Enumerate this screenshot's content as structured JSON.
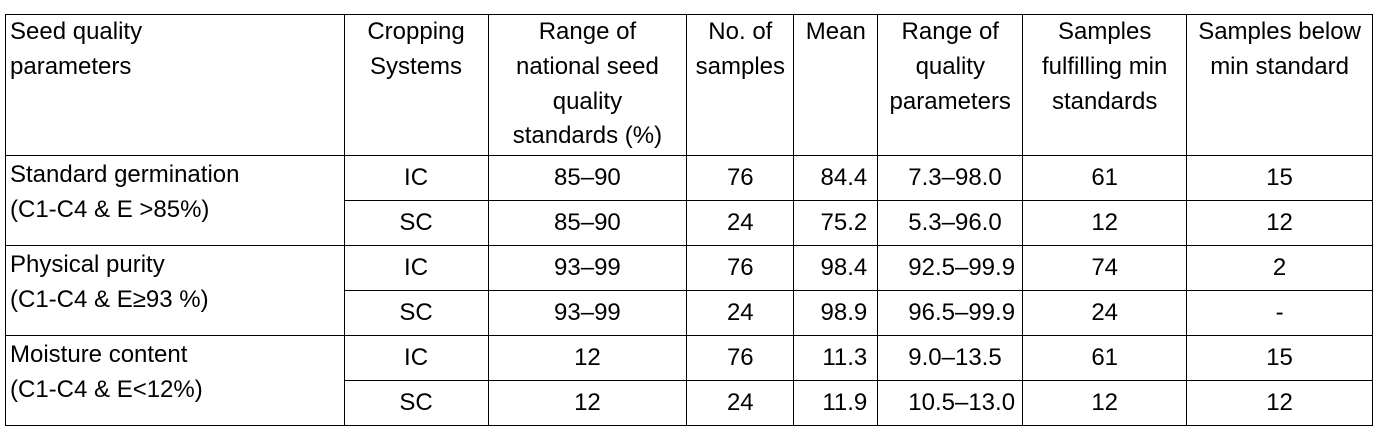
{
  "table": {
    "headers": [
      [
        "Seed quality",
        "parameters"
      ],
      [
        "Cropping",
        "Systems"
      ],
      [
        "Range of",
        "national seed",
        "quality",
        "standards (%)"
      ],
      [
        "No. of",
        "samples"
      ],
      [
        "Mean"
      ],
      [
        "Range of",
        "quality",
        "parameters"
      ],
      [
        "Samples",
        "fulfilling min",
        "standards"
      ],
      [
        "Samples below",
        "min standard"
      ]
    ],
    "groups": [
      {
        "param": [
          "Standard germination",
          "(C1-C4 & E >85%)"
        ],
        "rows": [
          {
            "system": "IC",
            "range": "85–90",
            "samples": "76",
            "mean": "84.4",
            "qrange": "7.3–98.0",
            "fulfilling": "61",
            "below": "15"
          },
          {
            "system": "SC",
            "range": "85–90",
            "samples": "24",
            "mean": "75.2",
            "qrange": "5.3–96.0",
            "fulfilling": "12",
            "below": "12"
          }
        ]
      },
      {
        "param": [
          "Physical purity",
          "(C1-C4 & E≥93 %)"
        ],
        "rows": [
          {
            "system": "IC",
            "range": "93–99",
            "samples": "76",
            "mean": "98.4",
            "qrange": "92.5–99.9",
            "fulfilling": "74",
            "below": "2"
          },
          {
            "system": "SC",
            "range": "93–99",
            "samples": "24",
            "mean": "98.9",
            "qrange": "96.5–99.9",
            "fulfilling": "24",
            "below": "-"
          }
        ]
      },
      {
        "param": [
          "Moisture content",
          "(C1-C4 & E<12%)"
        ],
        "rows": [
          {
            "system": "IC",
            "range": "12",
            "samples": "76",
            "mean": "11.3",
            "qrange": "9.0–13.5",
            "fulfilling": "61",
            "below": "15"
          },
          {
            "system": "SC",
            "range": "12",
            "samples": "24",
            "mean": "11.9",
            "qrange": "10.5–13.0",
            "fulfilling": "12",
            "below": "12"
          }
        ]
      }
    ]
  }
}
